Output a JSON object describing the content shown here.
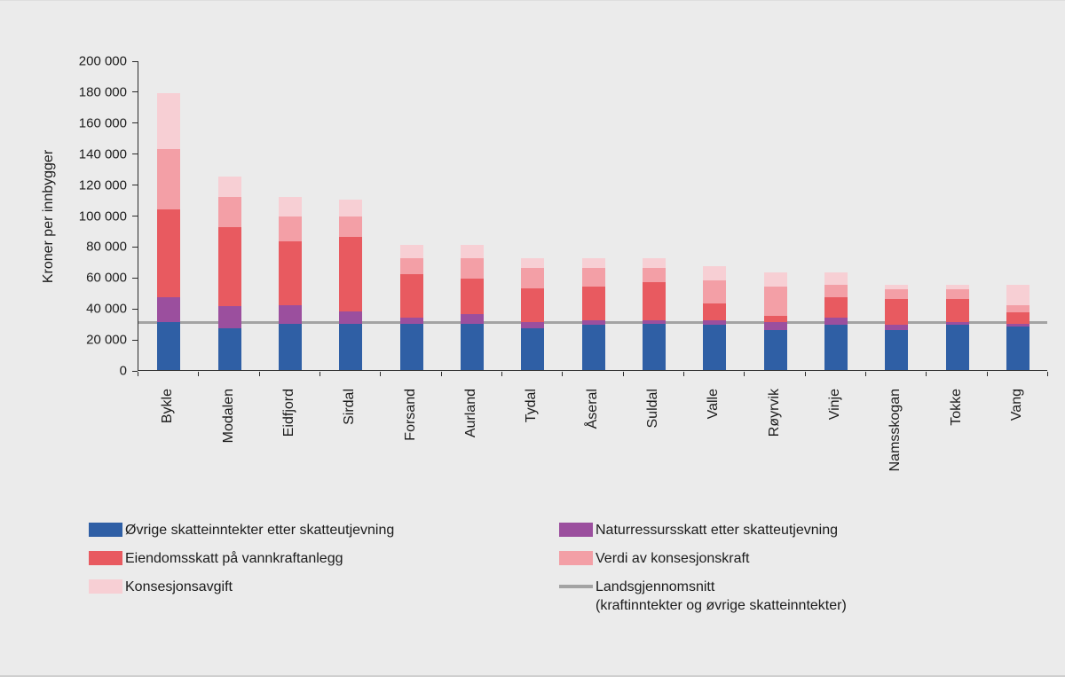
{
  "figure": {
    "background": "#ebebeb",
    "axis_color": "#2b2b2b",
    "text_color": "#1c1c1c"
  },
  "chart_data": {
    "type": "bar",
    "stacked": true,
    "title": "",
    "xlabel": "",
    "ylabel": "Kroner per innbygger",
    "ylim": [
      0,
      200000
    ],
    "ytick_step": 20000,
    "ytick_labels": [
      "0",
      "20 000",
      "40 000",
      "60 000",
      "80 000",
      "100 000",
      "120 000",
      "140 000",
      "160 000",
      "180 000",
      "200 000"
    ],
    "grid": false,
    "legend_position": "bottom",
    "categories": [
      "Bykle",
      "Modalen",
      "Eidfjord",
      "Sirdal",
      "Forsand",
      "Aurland",
      "Tydal",
      "Åseral",
      "Suldal",
      "Valle",
      "Røyrvik",
      "Vinje",
      "Namsskogan",
      "Tokke",
      "Vang"
    ],
    "series": [
      {
        "name": "Øvrige skatteinntekter etter skatteutjevning",
        "color": "#2f5fa5",
        "values": [
          31000,
          27000,
          30000,
          30000,
          30000,
          30000,
          27000,
          29000,
          30000,
          29000,
          26000,
          29000,
          26000,
          29000,
          28000
        ]
      },
      {
        "name": "Naturressursskatt etter skatteutjevning",
        "color": "#9b4f9e",
        "values": [
          16000,
          14000,
          12000,
          8000,
          4000,
          6000,
          4000,
          3000,
          2000,
          3000,
          5000,
          5000,
          3000,
          2000,
          2000
        ]
      },
      {
        "name": "Eiendomsskatt på vannkraftanlegg",
        "color": "#e85a60",
        "values": [
          57000,
          51000,
          41000,
          48000,
          28000,
          23000,
          22000,
          22000,
          25000,
          11000,
          4000,
          13000,
          17000,
          15000,
          7000
        ]
      },
      {
        "name": "Verdi av konsesjonskraft",
        "color": "#f39fa6",
        "values": [
          39000,
          20000,
          16000,
          13000,
          10000,
          13000,
          13000,
          12000,
          9000,
          15000,
          19000,
          8000,
          6000,
          6000,
          5000
        ]
      },
      {
        "name": "Konsesjonsavgift",
        "color": "#f7cfd4",
        "values": [
          36000,
          13000,
          13000,
          11000,
          9000,
          9000,
          6000,
          6000,
          6000,
          9000,
          9000,
          8000,
          3000,
          3000,
          13000
        ]
      }
    ],
    "reference_line": {
      "label": "Landsgjennomsnitt",
      "sublabel": "(kraftinntekter og øvrige skatteinntekter)",
      "value": 31000,
      "color": "#a3a3a3"
    }
  },
  "legend": {
    "items": [
      {
        "label": "Øvrige skatteinntekter etter skatteutjevning",
        "swatch": "#2f5fa5",
        "type": "box"
      },
      {
        "label": "Naturressursskatt etter skatteutjevning",
        "swatch": "#9b4f9e",
        "type": "box"
      },
      {
        "label": "Eiendomsskatt på vannkraftanlegg",
        "swatch": "#e85a60",
        "type": "box"
      },
      {
        "label": "Verdi av konsesjonskraft",
        "swatch": "#f39fa6",
        "type": "box"
      },
      {
        "label": "Konsesjonsavgift",
        "swatch": "#f7cfd4",
        "type": "box"
      },
      {
        "label": "Landsgjennomsnitt",
        "sublabel": "(kraftinntekter og øvrige skatteinntekter)",
        "swatch": "#a3a3a3",
        "type": "line"
      }
    ]
  }
}
